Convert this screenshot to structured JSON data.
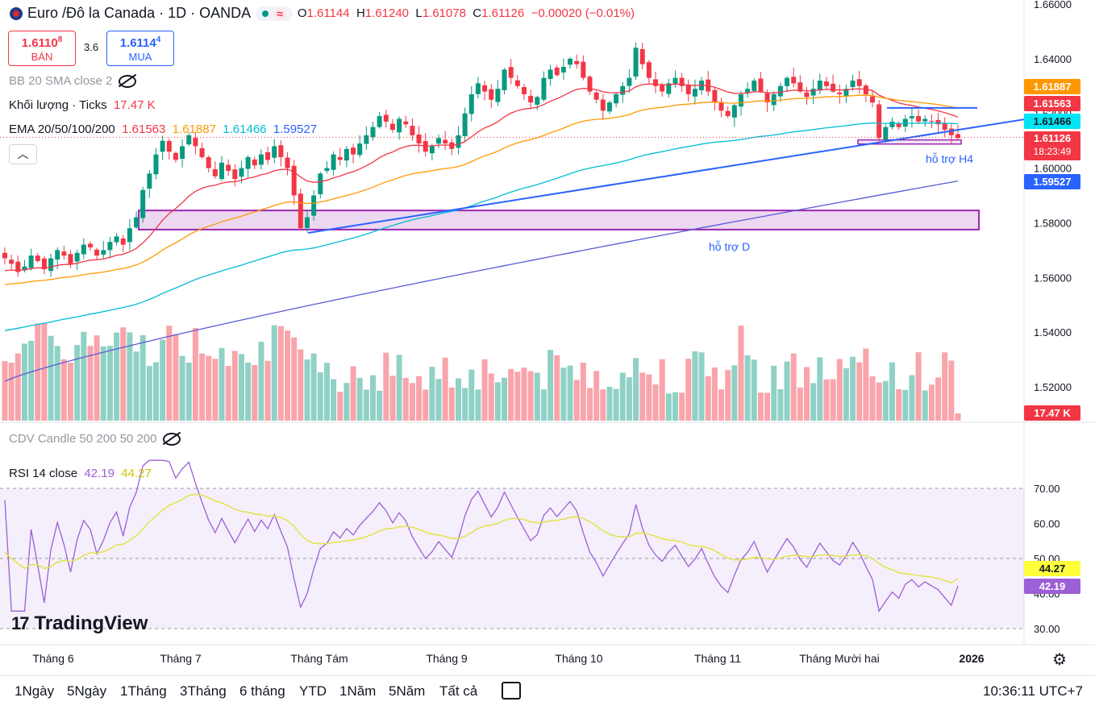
{
  "header": {
    "title": "Euro /Đô la Canada · 1D · OANDA",
    "wave_icon": "wave-icon",
    "ohlc": {
      "o_label": "O",
      "o": "1.61144",
      "h_label": "H",
      "h": "1.61240",
      "l_label": "L",
      "l": "1.61078",
      "c_label": "C",
      "c": "1.61126",
      "change": "−0.00020 (−0.01%)"
    }
  },
  "trade": {
    "sell_price": "1.6110",
    "sell_sup": "8",
    "sell_label": "BÁN",
    "spread": "3.6",
    "buy_price": "1.6114",
    "buy_sup": "4",
    "buy_label": "MUA"
  },
  "legends": {
    "bb": "BB 20 SMA close 2",
    "volume_label": "Khối lượng · Ticks",
    "volume_value": "17.47 K",
    "ema_label": "EMA 20/50/100/200",
    "ema20": "1.61563",
    "ema50": "1.61887",
    "ema100": "1.61466",
    "ema200": "1.59527",
    "cdv": "CDV Candle 50 200 50 200",
    "rsi_label": "RSI 14 close",
    "rsi_value": "42.19",
    "rsi_ma": "44.27"
  },
  "annotations": {
    "support_h4": "hỗ trợ H4",
    "support_d": "hỗ trợ D"
  },
  "price_tags": {
    "ema50": "1.61887",
    "ema20": "1.61563",
    "ema100": "1.61466",
    "last": "1.61126",
    "countdown": "18:23:49",
    "ema200": "1.59527",
    "volume": "17.47 K",
    "rsi_ma": "44.27",
    "rsi": "42.19"
  },
  "colors": {
    "up": "#089981",
    "down": "#f23645",
    "ema20": "#f23645",
    "ema50": "#ff9800",
    "ema100": "#00bcd4",
    "ema200": "#5b5bd6",
    "trend": "#2962ff",
    "zone": "#9c27b0",
    "rsi": "#9c5fd6",
    "rsi_ma": "#e3e34a"
  },
  "chart_data": {
    "type": "candlestick",
    "price_axis": {
      "ticks": [
        "1.66000",
        "1.64000",
        "1.62000",
        "1.60000",
        "1.58000",
        "1.56000",
        "1.54000",
        "1.52000"
      ],
      "range": [
        1.52,
        1.66
      ]
    },
    "time_axis": [
      "Tháng 6",
      "Tháng 7",
      "Tháng Tám",
      "Tháng 9",
      "Tháng 10",
      "Tháng 11",
      "Tháng Mười hai",
      "2026"
    ],
    "rsi_axis": [
      "70.00",
      "60.00",
      "50.00",
      "40.00",
      "30.00"
    ],
    "rsi_range": [
      30,
      70
    ],
    "ohlc_approx_closes": [
      1.567,
      1.565,
      1.562,
      1.564,
      1.568,
      1.566,
      1.563,
      1.567,
      1.57,
      1.568,
      1.565,
      1.569,
      1.572,
      1.571,
      1.568,
      1.57,
      1.573,
      1.575,
      1.572,
      1.578,
      1.582,
      1.592,
      1.598,
      1.605,
      1.61,
      1.606,
      1.603,
      1.608,
      1.612,
      1.608,
      1.604,
      1.6,
      1.597,
      1.602,
      1.599,
      1.596,
      1.6,
      1.604,
      1.601,
      1.605,
      1.603,
      1.608,
      1.604,
      1.6,
      1.59,
      1.578,
      1.582,
      1.59,
      1.598,
      1.6,
      1.605,
      1.603,
      1.607,
      1.605,
      1.609,
      1.612,
      1.615,
      1.619,
      1.617,
      1.614,
      1.618,
      1.616,
      1.612,
      1.609,
      1.606,
      1.608,
      1.611,
      1.609,
      1.607,
      1.612,
      1.62,
      1.627,
      1.631,
      1.628,
      1.625,
      1.629,
      1.636,
      1.633,
      1.63,
      1.627,
      1.624,
      1.626,
      1.633,
      1.636,
      1.634,
      1.637,
      1.64,
      1.638,
      1.633,
      1.628,
      1.625,
      1.621,
      1.624,
      1.627,
      1.63,
      1.633,
      1.644,
      1.638,
      1.633,
      1.63,
      1.628,
      1.631,
      1.633,
      1.63,
      1.627,
      1.629,
      1.632,
      1.628,
      1.624,
      1.621,
      1.619,
      1.623,
      1.627,
      1.629,
      1.632,
      1.628,
      1.624,
      1.627,
      1.63,
      1.633,
      1.631,
      1.628,
      1.626,
      1.629,
      1.632,
      1.63,
      1.628,
      1.627,
      1.629,
      1.632,
      1.63,
      1.627,
      1.624,
      1.611,
      1.615,
      1.617,
      1.615,
      1.618,
      1.619,
      1.617,
      1.618,
      1.617,
      1.616,
      1.614,
      1.612,
      1.611
    ],
    "volume": {
      "unit": "K ticks",
      "last": 17.47
    },
    "rsi": {
      "last": 42.19,
      "ma_last": 44.27,
      "levels": [
        70,
        50,
        30
      ]
    },
    "ema": {
      "ema20": 1.61563,
      "ema50": 1.61887,
      "ema100": 1.61466,
      "ema200": 1.59527
    },
    "zones": [
      {
        "name": "hỗ trợ D",
        "low": 1.5775,
        "high": 1.5845
      },
      {
        "name": "hỗ trợ H4",
        "low": 1.6088,
        "high": 1.6103
      }
    ]
  },
  "toolbar": {
    "ranges": [
      "1Ngày",
      "5Ngày",
      "1Tháng",
      "3Tháng",
      "6 tháng",
      "YTD",
      "1Năm",
      "5Năm",
      "Tất cả"
    ],
    "clock": "10:36:11 UTC+7",
    "calendar_icon": "calendar-range-icon",
    "gear_icon": "gear-icon"
  },
  "brand": "TradingView"
}
